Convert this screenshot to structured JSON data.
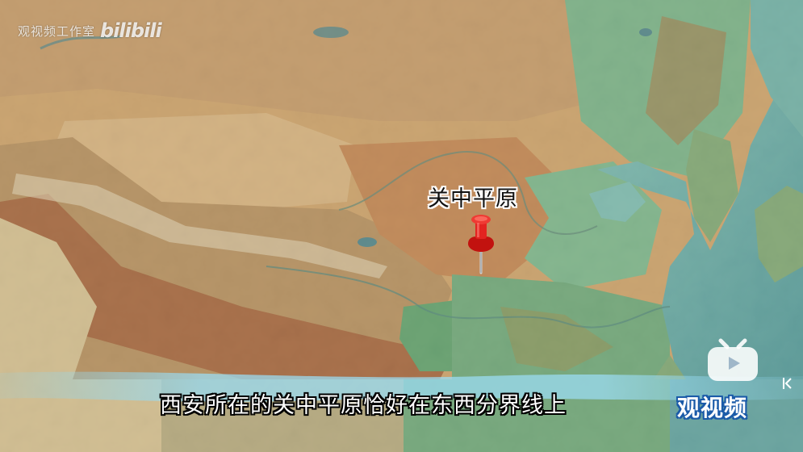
{
  "watermark": {
    "text": "观视频工作室",
    "logo": "bilibili"
  },
  "map": {
    "type": "shaded-relief",
    "region": "China and East Asia",
    "colors": {
      "lowland": "#5fae8c",
      "plain": "#7cc09a",
      "plateau": "#c99a66",
      "mountain": "#9c5a3a",
      "sea": "#69b3b3",
      "deep_sea": "#4e9ea5",
      "snow": "#e7e3cf"
    }
  },
  "marker": {
    "label": "关中平原",
    "icon": "map-pin-icon",
    "color": "#e0201c"
  },
  "subtitle": {
    "text": "西安所在的关中平原恰好在东西分界线上"
  },
  "brand": {
    "icon": "tv-icon",
    "name": "观视频",
    "color": "#1a5aa8"
  }
}
